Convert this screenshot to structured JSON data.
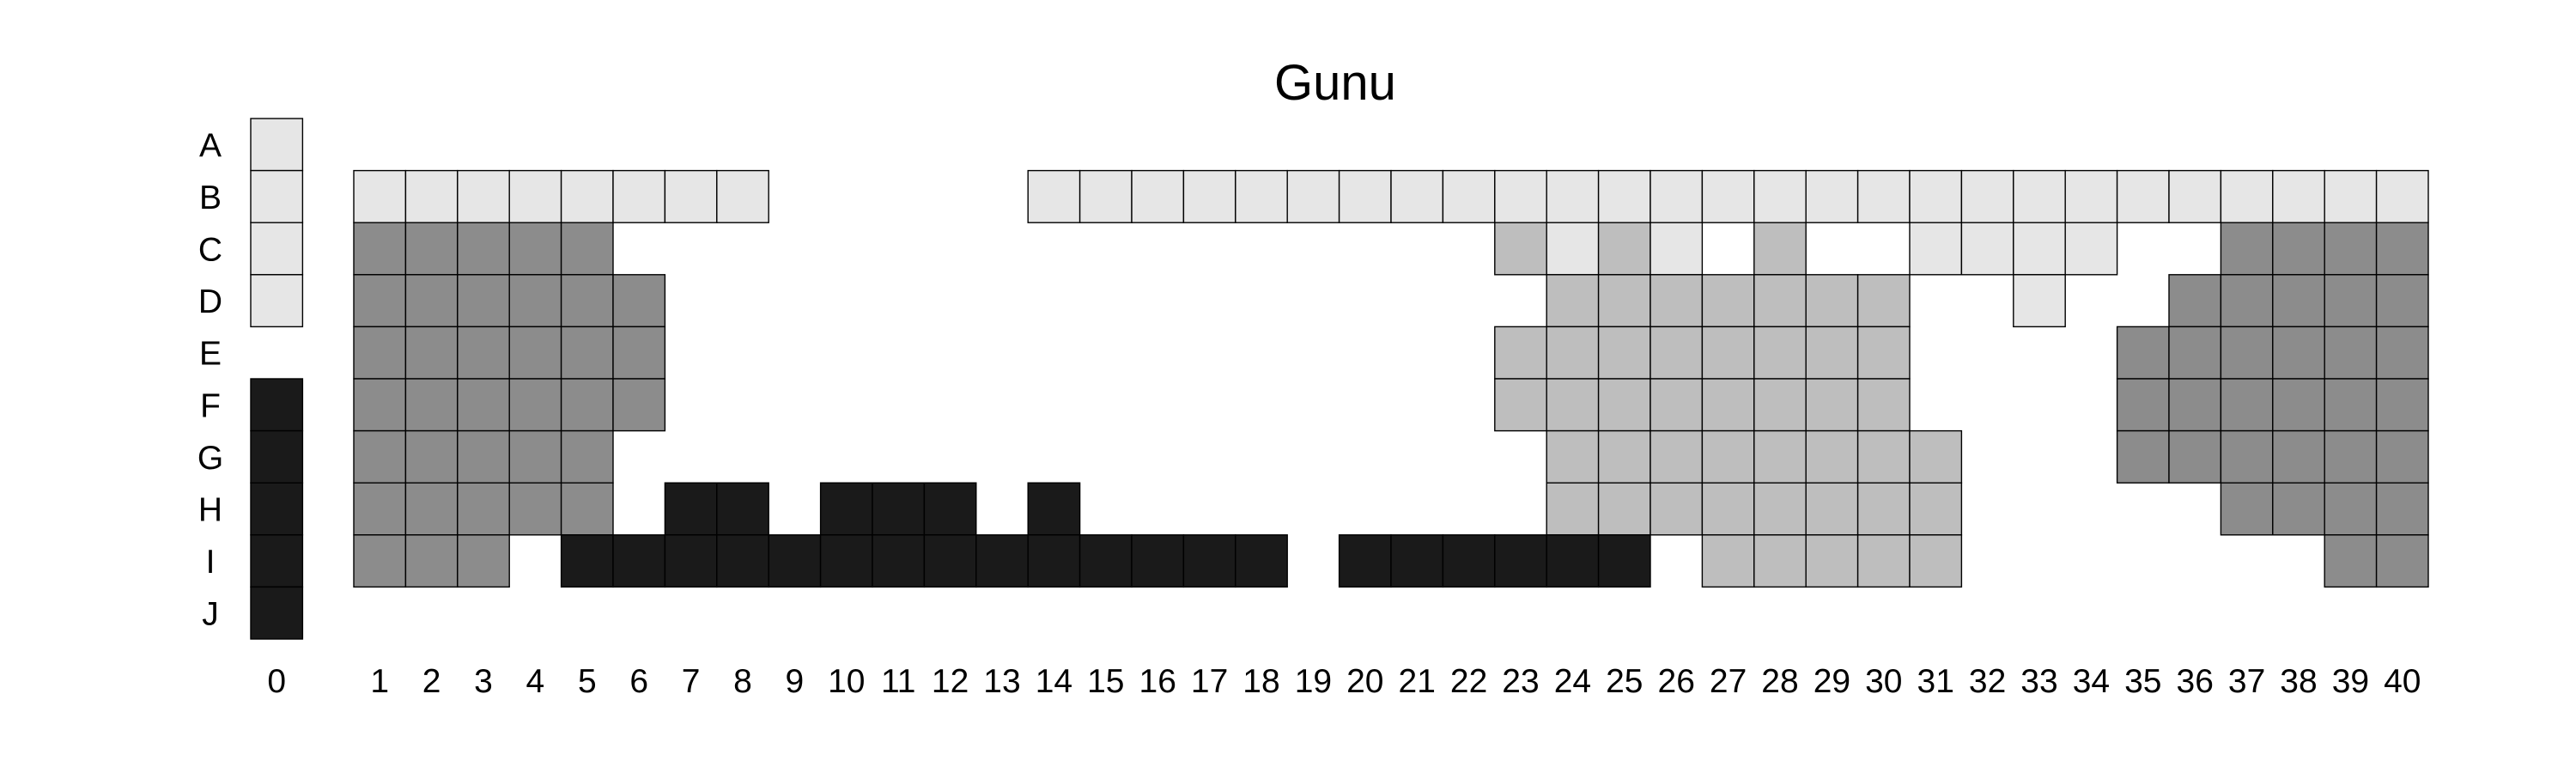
{
  "chart_data": {
    "type": "heatmap",
    "title": "Gunu",
    "xlabel": "",
    "ylabel": "",
    "rows": [
      "A",
      "B",
      "C",
      "D",
      "E",
      "F",
      "G",
      "H",
      "I",
      "J"
    ],
    "columns": [
      "0",
      "1",
      "2",
      "3",
      "4",
      "5",
      "6",
      "7",
      "8",
      "9",
      "10",
      "11",
      "12",
      "13",
      "14",
      "15",
      "16",
      "17",
      "18",
      "19",
      "20",
      "21",
      "22",
      "23",
      "24",
      "25",
      "26",
      "27",
      "28",
      "29",
      "30",
      "31",
      "32",
      "33",
      "34",
      "35",
      "36",
      "37",
      "38",
      "39",
      "40"
    ],
    "legend": "none",
    "grid": false,
    "colors": {
      "very_light": "#e6e6e6",
      "light": "#bebebe",
      "medium": "#8c8c8c",
      "dark": "#1a1a1a"
    },
    "cells": {
      "0": {
        "A": "very_light",
        "B": "very_light",
        "C": "very_light",
        "D": "very_light",
        "F": "dark",
        "G": "dark",
        "H": "dark",
        "I": "dark",
        "J": "dark"
      },
      "1": {
        "B": "very_light",
        "C": "medium",
        "D": "medium",
        "E": "medium",
        "F": "medium",
        "G": "medium",
        "H": "medium",
        "I": "medium"
      },
      "2": {
        "B": "very_light",
        "C": "medium",
        "D": "medium",
        "E": "medium",
        "F": "medium",
        "G": "medium",
        "H": "medium",
        "I": "medium"
      },
      "3": {
        "B": "very_light",
        "C": "medium",
        "D": "medium",
        "E": "medium",
        "F": "medium",
        "G": "medium",
        "H": "medium",
        "I": "medium"
      },
      "4": {
        "B": "very_light",
        "C": "medium",
        "D": "medium",
        "E": "medium",
        "F": "medium",
        "G": "medium",
        "H": "medium"
      },
      "5": {
        "B": "very_light",
        "C": "medium",
        "D": "medium",
        "E": "medium",
        "F": "medium",
        "G": "medium",
        "H": "medium",
        "I": "dark"
      },
      "6": {
        "B": "very_light",
        "D": "medium",
        "E": "medium",
        "F": "medium",
        "I": "dark"
      },
      "7": {
        "B": "very_light",
        "H": "dark",
        "I": "dark"
      },
      "8": {
        "B": "very_light",
        "H": "dark",
        "I": "dark"
      },
      "9": {
        "I": "dark"
      },
      "10": {
        "H": "dark",
        "I": "dark"
      },
      "11": {
        "H": "dark",
        "I": "dark"
      },
      "12": {
        "H": "dark",
        "I": "dark"
      },
      "13": {
        "I": "dark"
      },
      "14": {
        "B": "very_light",
        "H": "dark",
        "I": "dark"
      },
      "15": {
        "B": "very_light",
        "I": "dark"
      },
      "16": {
        "B": "very_light",
        "I": "dark"
      },
      "17": {
        "B": "very_light",
        "I": "dark"
      },
      "18": {
        "B": "very_light",
        "I": "dark"
      },
      "19": {
        "B": "very_light"
      },
      "20": {
        "B": "very_light",
        "I": "dark"
      },
      "21": {
        "B": "very_light",
        "I": "dark"
      },
      "22": {
        "B": "very_light",
        "I": "dark"
      },
      "23": {
        "B": "very_light",
        "C": "light",
        "E": "light",
        "F": "light",
        "I": "dark"
      },
      "24": {
        "B": "very_light",
        "C": "very_light",
        "D": "light",
        "E": "light",
        "F": "light",
        "G": "light",
        "H": "light",
        "I": "dark"
      },
      "25": {
        "B": "very_light",
        "C": "light",
        "D": "light",
        "E": "light",
        "F": "light",
        "G": "light",
        "H": "light",
        "I": "dark"
      },
      "26": {
        "B": "very_light",
        "C": "very_light",
        "D": "light",
        "E": "light",
        "F": "light",
        "G": "light",
        "H": "light"
      },
      "27": {
        "B": "very_light",
        "D": "light",
        "E": "light",
        "F": "light",
        "G": "light",
        "H": "light",
        "I": "light"
      },
      "28": {
        "B": "very_light",
        "C": "light",
        "D": "light",
        "E": "light",
        "F": "light",
        "G": "light",
        "H": "light",
        "I": "light"
      },
      "29": {
        "B": "very_light",
        "D": "light",
        "E": "light",
        "F": "light",
        "G": "light",
        "H": "light",
        "I": "light"
      },
      "30": {
        "B": "very_light",
        "D": "light",
        "E": "light",
        "F": "light",
        "G": "light",
        "H": "light",
        "I": "light"
      },
      "31": {
        "B": "very_light",
        "C": "very_light",
        "G": "light",
        "H": "light",
        "I": "light"
      },
      "32": {
        "B": "very_light",
        "C": "very_light"
      },
      "33": {
        "B": "very_light",
        "C": "very_light",
        "D": "very_light"
      },
      "34": {
        "B": "very_light",
        "C": "very_light"
      },
      "35": {
        "B": "very_light",
        "E": "medium",
        "F": "medium",
        "G": "medium"
      },
      "36": {
        "B": "very_light",
        "D": "medium",
        "E": "medium",
        "F": "medium",
        "G": "medium"
      },
      "37": {
        "B": "very_light",
        "C": "medium",
        "D": "medium",
        "E": "medium",
        "F": "medium",
        "G": "medium",
        "H": "medium"
      },
      "38": {
        "B": "very_light",
        "C": "medium",
        "D": "medium",
        "E": "medium",
        "F": "medium",
        "G": "medium",
        "H": "medium"
      },
      "39": {
        "B": "very_light",
        "C": "medium",
        "D": "medium",
        "E": "medium",
        "F": "medium",
        "G": "medium",
        "H": "medium",
        "I": "medium"
      },
      "40": {
        "B": "very_light",
        "C": "medium",
        "D": "medium",
        "E": "medium",
        "F": "medium",
        "G": "medium",
        "H": "medium",
        "I": "medium"
      }
    }
  }
}
